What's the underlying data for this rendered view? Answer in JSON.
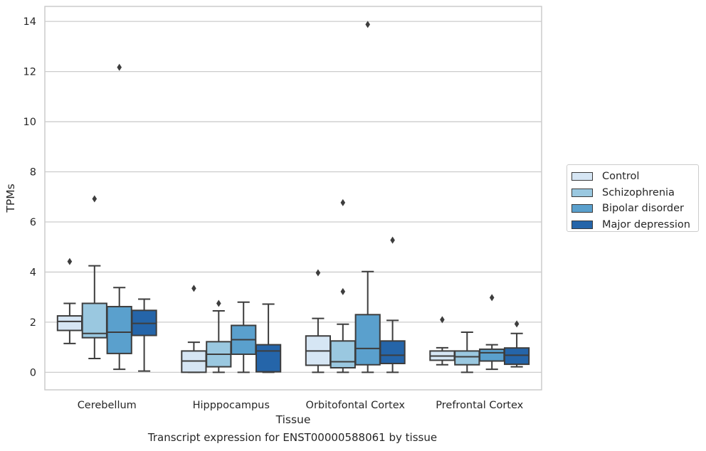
{
  "chart_data": {
    "type": "box",
    "title": "",
    "xlabel": "Tissue",
    "ylabel": "TPMs",
    "ylim": [
      -0.7,
      14.6
    ],
    "yticks": [
      0,
      2,
      4,
      6,
      8,
      10,
      12,
      14
    ],
    "grid": "horizontal",
    "legend_position": "right",
    "categories": [
      "Cerebellum",
      "Hipppocampus",
      "Orbitofontal Cortex",
      "Prefrontal Cortex"
    ],
    "series": [
      {
        "name": "Control",
        "color": "#d6e6f4",
        "boxes": [
          {
            "whisker_low": 1.15,
            "q1": 1.67,
            "median": 2.03,
            "q3": 2.25,
            "whisker_high": 2.75,
            "outliers": [
              4.42
            ]
          },
          {
            "whisker_low": 0.0,
            "q1": 0.0,
            "median": 0.45,
            "q3": 0.85,
            "whisker_high": 1.2,
            "outliers": [
              3.35
            ]
          },
          {
            "whisker_low": 0.0,
            "q1": 0.28,
            "median": 0.85,
            "q3": 1.45,
            "whisker_high": 2.15,
            "outliers": [
              3.97
            ]
          },
          {
            "whisker_low": 0.3,
            "q1": 0.48,
            "median": 0.65,
            "q3": 0.85,
            "whisker_high": 0.98,
            "outliers": [
              2.1
            ]
          }
        ]
      },
      {
        "name": "Schizophrenia",
        "color": "#9ac8e0",
        "boxes": [
          {
            "whisker_low": 0.55,
            "q1": 1.38,
            "median": 1.55,
            "q3": 2.75,
            "whisker_high": 4.25,
            "outliers": [
              6.92
            ]
          },
          {
            "whisker_low": 0.0,
            "q1": 0.22,
            "median": 0.72,
            "q3": 1.22,
            "whisker_high": 2.45,
            "outliers": [
              2.75
            ]
          },
          {
            "whisker_low": 0.0,
            "q1": 0.18,
            "median": 0.42,
            "q3": 1.25,
            "whisker_high": 1.92,
            "outliers": [
              3.22,
              6.77
            ]
          },
          {
            "whisker_low": 0.0,
            "q1": 0.3,
            "median": 0.62,
            "q3": 0.85,
            "whisker_high": 1.6,
            "outliers": []
          }
        ]
      },
      {
        "name": "Bipolar disorder",
        "color": "#5aa0cd",
        "boxes": [
          {
            "whisker_low": 0.12,
            "q1": 0.75,
            "median": 1.6,
            "q3": 2.62,
            "whisker_high": 3.38,
            "outliers": [
              12.17
            ]
          },
          {
            "whisker_low": 0.0,
            "q1": 0.72,
            "median": 1.3,
            "q3": 1.87,
            "whisker_high": 2.8,
            "outliers": []
          },
          {
            "whisker_low": 0.0,
            "q1": 0.3,
            "median": 0.95,
            "q3": 2.3,
            "whisker_high": 4.02,
            "outliers": [
              13.88
            ]
          },
          {
            "whisker_low": 0.12,
            "q1": 0.45,
            "median": 0.78,
            "q3": 0.92,
            "whisker_high": 1.1,
            "outliers": [
              2.98
            ]
          }
        ]
      },
      {
        "name": "Major depression",
        "color": "#2565a9",
        "boxes": [
          {
            "whisker_low": 0.05,
            "q1": 1.47,
            "median": 1.95,
            "q3": 2.47,
            "whisker_high": 2.92,
            "outliers": []
          },
          {
            "whisker_low": 0.0,
            "q1": 0.02,
            "median": 0.85,
            "q3": 1.1,
            "whisker_high": 2.72,
            "outliers": []
          },
          {
            "whisker_low": 0.0,
            "q1": 0.35,
            "median": 0.68,
            "q3": 1.25,
            "whisker_high": 2.07,
            "outliers": [
              5.27
            ]
          },
          {
            "whisker_low": 0.22,
            "q1": 0.32,
            "median": 0.68,
            "q3": 0.97,
            "whisker_high": 1.55,
            "outliers": [
              1.93
            ]
          }
        ]
      }
    ]
  },
  "caption": "Transcript expression for ENST00000588061 by tissue"
}
